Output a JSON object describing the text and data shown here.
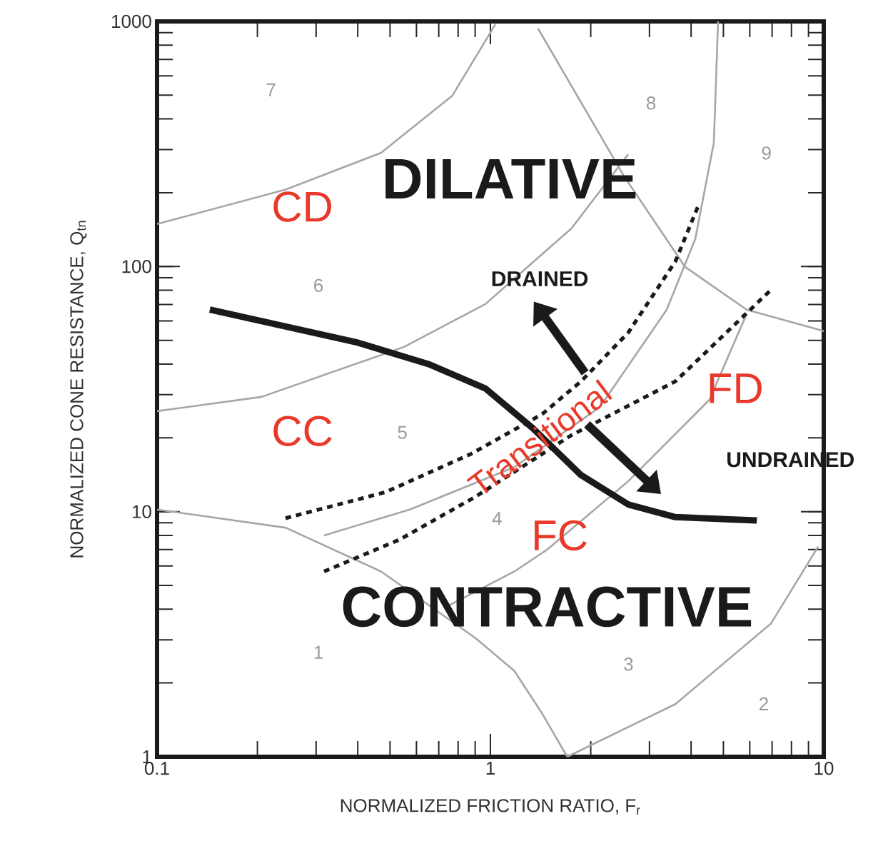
{
  "chart_data": {
    "type": "line",
    "xlabel": "NORMALIZED FRICTION RATIO, F$_{r}$",
    "ylabel": "NORMALIZED CONE RESISTANCE, Q$_{tn}$",
    "log": "xy",
    "marker": "none",
    "xlim": [
      0.1,
      10
    ],
    "ylim": [
      1,
      1000
    ],
    "xticks": [
      0.1,
      1,
      10
    ],
    "yticks": [
      1,
      10,
      100,
      1000
    ],
    "series": [
      {
        "color": "#a6a6a6",
        "x": [
          0.1,
          0.243,
          0.47,
          0.769,
          1.035
        ],
        "values": [
          149,
          206,
          291,
          498,
          973
        ]
      },
      {
        "color": "#a6a6a6",
        "x": [
          0.1,
          0.206,
          0.551,
          0.966,
          1.75,
          2.59
        ],
        "values": [
          25.7,
          29.4,
          47,
          70.3,
          143,
          287
        ]
      },
      {
        "color": "#a6a6a6",
        "x": [
          1.39,
          2.51,
          3.84,
          5.87,
          10
        ],
        "values": [
          935,
          235,
          99.6,
          66.7,
          54.5
        ]
      },
      {
        "color": "#a6a6a6",
        "x": [
          0.317,
          0.573,
          1.18,
          2.13,
          3.38,
          4.12,
          4.68,
          4.82
        ],
        "values": [
          8.0,
          10.2,
          15.2,
          26.7,
          66.7,
          130,
          320,
          1000
        ]
      },
      {
        "color": "#a6a6a6",
        "x": [
          0.74,
          1.18,
          1.48,
          2.59,
          4.54,
          5.87
        ],
        "values": [
          4.1,
          5.7,
          7.0,
          13.3,
          28.6,
          64.0
        ]
      },
      {
        "color": "#a6a6a6",
        "x": [
          0.1,
          0.243,
          0.47,
          0.902,
          1.18,
          1.43,
          1.7
        ],
        "values": [
          10.2,
          8.6,
          5.7,
          3.05,
          2.24,
          1.5,
          1
        ]
      },
      {
        "color": "#a6a6a6",
        "x": [
          1.7,
          3.59,
          6.95,
          9.62
        ],
        "values": [
          1,
          1.64,
          3.5,
          7.2
        ]
      },
      {
        "color": "#1a1a1a",
        "x": [
          0.144,
          0.398,
          0.652,
          0.966,
          1.34,
          1.87,
          2.59,
          3.59,
          6.3
        ],
        "values": [
          66.7,
          49.0,
          40.0,
          31.8,
          21.9,
          14.1,
          10.7,
          9.5,
          9.2
        ]
      },
      {
        "color": "#1a1a1a",
        "line_style": "dashed",
        "x": [
          0.243,
          0.484,
          0.875,
          1.43,
          1.87,
          2.59,
          3.59,
          4.24
        ],
        "values": [
          9.4,
          12.0,
          17.2,
          25.0,
          34.0,
          53.7,
          105,
          182
        ]
      },
      {
        "color": "#1a1a1a",
        "line_style": "dashed",
        "x": [
          0.317,
          0.535,
          0.902,
          1.75,
          3.59,
          6.95
        ],
        "values": [
          5.7,
          7.7,
          11.5,
          20.5,
          34.0,
          80.4
        ]
      }
    ],
    "annotations": [
      "DILATIVE",
      "CONTRACTIVE",
      "CD",
      "CC",
      "FD",
      "FC",
      "Transitional",
      "DRAINED",
      "UNDRAINED",
      "1",
      "2",
      "3",
      "4",
      "5",
      "6",
      "7",
      "8",
      "9"
    ]
  }
}
